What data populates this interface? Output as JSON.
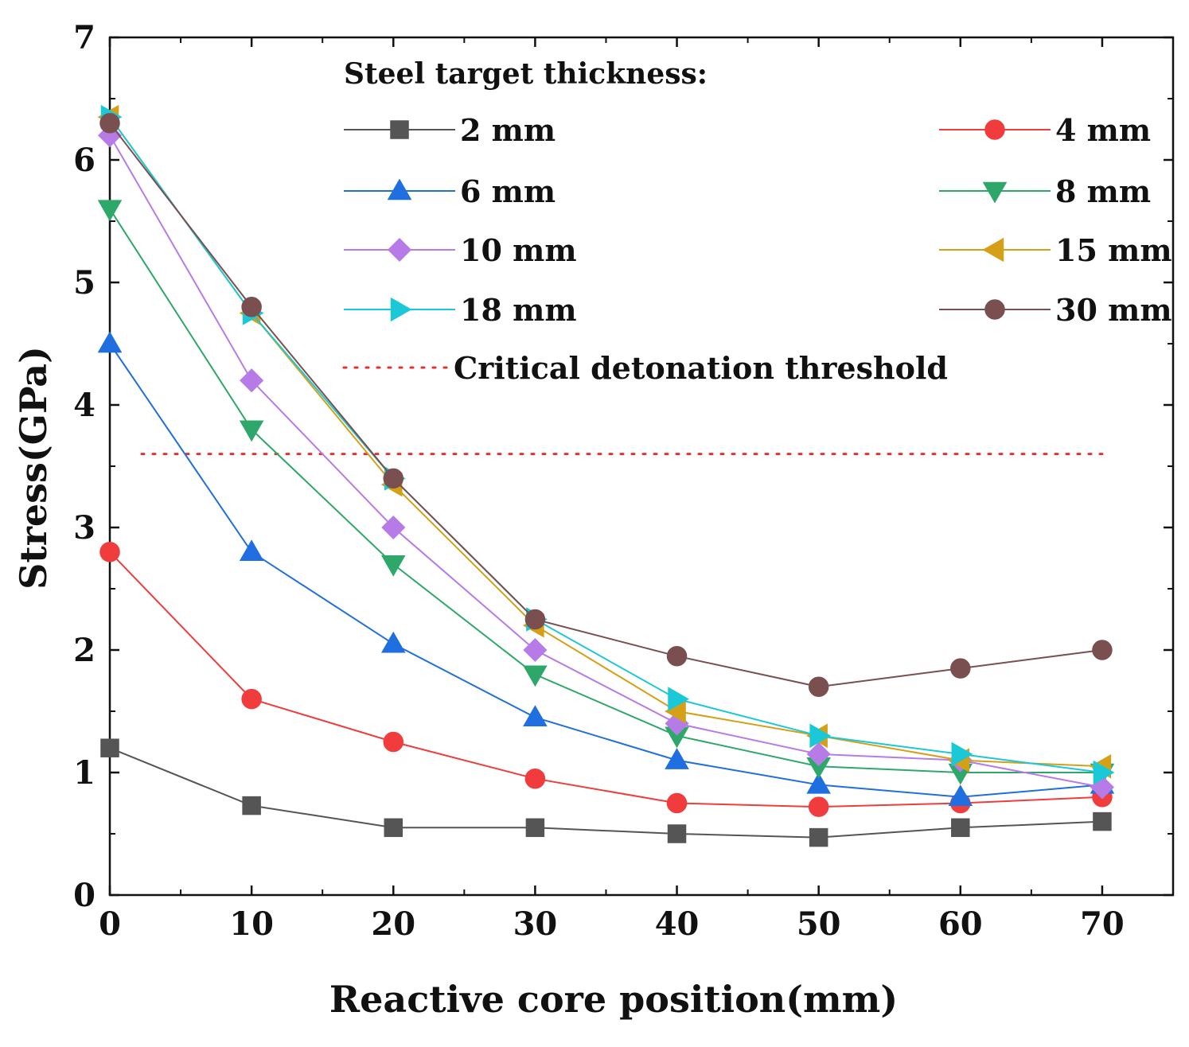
{
  "chart_data": {
    "type": "line",
    "title": "",
    "xlabel": "Reactive core position(mm)",
    "ylabel": "Stress(GPa)",
    "xlim": [
      0,
      75
    ],
    "ylim": [
      0,
      7
    ],
    "xticks": [
      0,
      10,
      20,
      30,
      40,
      50,
      60,
      70
    ],
    "yticks": [
      0,
      1,
      2,
      3,
      4,
      5,
      6,
      7
    ],
    "grid": false,
    "legend_title": "Steel target thickness:",
    "legend_position": "top-right",
    "x": [
      0,
      10,
      20,
      30,
      40,
      50,
      60,
      70
    ],
    "series": [
      {
        "name": "2 mm",
        "marker": "square",
        "color": "#555555",
        "values": [
          1.2,
          0.73,
          0.55,
          0.55,
          0.5,
          0.47,
          0.55,
          0.6
        ]
      },
      {
        "name": "4 mm",
        "marker": "circle",
        "color": "#f03c3c",
        "values": [
          2.8,
          1.6,
          1.25,
          0.95,
          0.75,
          0.72,
          0.75,
          0.8
        ]
      },
      {
        "name": "6 mm",
        "marker": "triangle-up",
        "color": "#1f6fe0",
        "values": [
          4.5,
          2.8,
          2.05,
          1.45,
          1.1,
          0.9,
          0.8,
          0.9
        ]
      },
      {
        "name": "8 mm",
        "marker": "triangle-down",
        "color": "#2ea86a",
        "values": [
          5.6,
          3.8,
          2.7,
          1.8,
          1.3,
          1.05,
          1.0,
          1.0
        ]
      },
      {
        "name": "10 mm",
        "marker": "diamond",
        "color": "#b77be8",
        "values": [
          6.2,
          4.2,
          3.0,
          2.0,
          1.4,
          1.15,
          1.1,
          0.88
        ]
      },
      {
        "name": "15 mm",
        "marker": "triangle-left",
        "color": "#d4a017",
        "values": [
          6.35,
          4.75,
          3.35,
          2.2,
          1.5,
          1.3,
          1.1,
          1.05
        ]
      },
      {
        "name": "18 mm",
        "marker": "triangle-right",
        "color": "#1ac8d8",
        "values": [
          6.35,
          4.75,
          3.4,
          2.25,
          1.6,
          1.3,
          1.15,
          1.0
        ]
      },
      {
        "name": "30 mm",
        "marker": "circle",
        "color": "#7a4f4f",
        "values": [
          6.3,
          4.8,
          3.4,
          2.25,
          1.95,
          1.7,
          1.85,
          2.0
        ]
      }
    ],
    "threshold": {
      "name": "Critical detonation threshold",
      "value": 3.6,
      "color": "#e53030",
      "style": "dotted"
    }
  }
}
